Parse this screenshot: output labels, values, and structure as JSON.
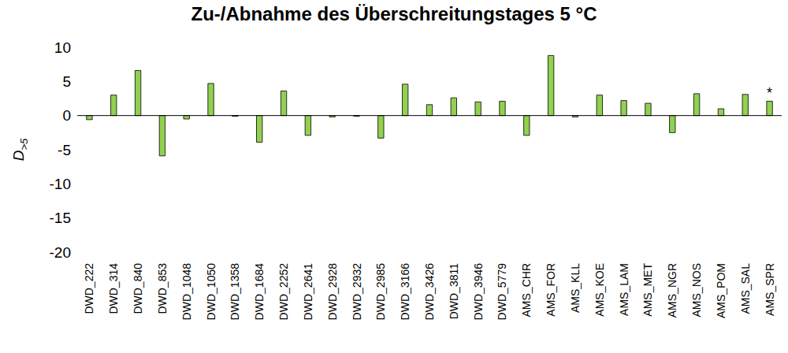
{
  "chart_data": {
    "type": "bar",
    "title": "Zu-/Abnahme des Überschreitungstages 5 °C",
    "y_label": "D>5",
    "categories": [
      "DWD_222",
      "DWD_314",
      "DWD_840",
      "DWD_853",
      "DWD_1048",
      "DWD_1050",
      "DWD_1358",
      "DWD_1684",
      "DWD_2252",
      "DWD_2641",
      "DWD_2928",
      "DWD_2932",
      "DWD_2985",
      "DWD_3166",
      "DWD_3426",
      "DWD_3811",
      "DWD_3946",
      "DWD_5779",
      "AMS_CHR",
      "AMS_FOR",
      "AMS_KLL",
      "AMS_KOE",
      "AMS_LAM",
      "AMS_MET",
      "AMS_NGR",
      "AMS_NOS",
      "AMS_POM",
      "AMS_SAL",
      "AMS_SPR"
    ],
    "values": [
      -0.6,
      3.0,
      6.6,
      -5.9,
      -0.5,
      4.7,
      -0.1,
      -3.9,
      3.6,
      -2.9,
      -0.2,
      -0.1,
      -3.3,
      4.6,
      1.6,
      2.6,
      2.0,
      2.1,
      -2.9,
      8.8,
      -0.2,
      3.0,
      2.2,
      1.8,
      -2.5,
      3.2,
      1.0,
      3.1,
      2.1
    ],
    "color": "#92d050",
    "ylim": [
      -20,
      10
    ],
    "yticks": [
      -20,
      -15,
      -10,
      -5,
      0,
      5,
      10
    ],
    "grid": false,
    "annotations": [
      {
        "category": "AMS_SPR",
        "text": "*"
      }
    ]
  }
}
